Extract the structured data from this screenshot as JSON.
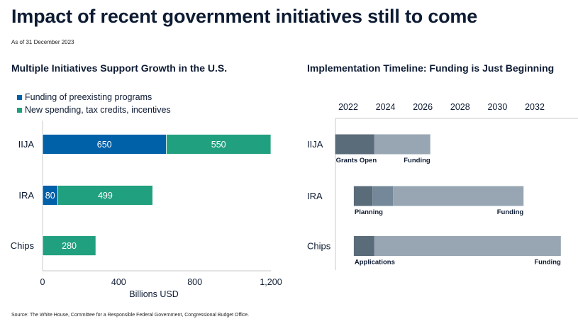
{
  "header": {
    "title": "Impact of recent government initiatives still to come",
    "as_of": "As of 31 December 2023"
  },
  "footer": {
    "source": "Source: The White House, Committee for a Responsible Federal Government, Congressional Budget Office."
  },
  "colors": {
    "blue": "#0060a8",
    "green": "#21a07f",
    "dark_slate": "#5a6b79",
    "mid_slate": "#75889a",
    "light_slate": "#97a6b2",
    "text": "#0d1b33",
    "axis": "#c8c8c8"
  },
  "chart_data": [
    {
      "type": "bar",
      "orientation": "horizontal",
      "stacked": true,
      "title": "Multiple Initiatives Support Growth in the U.S.",
      "categories": [
        "IIJA",
        "IRA",
        "Chips"
      ],
      "series": [
        {
          "name": "Funding of preexisting programs",
          "color_key": "blue",
          "values": [
            650,
            80,
            0
          ]
        },
        {
          "name": "New spending, tax credits, incentives",
          "color_key": "green",
          "values": [
            550,
            499,
            280
          ]
        }
      ],
      "data_labels": [
        [
          "650",
          "80",
          null
        ],
        [
          "550",
          "499",
          "280"
        ]
      ],
      "xlabel": "Billions USD",
      "ylabel": "",
      "xlim": [
        0,
        1200
      ],
      "xticks": [
        0,
        400,
        800,
        1200
      ],
      "xtick_labels": [
        "0",
        "400",
        "800",
        "1,200"
      ],
      "legend_position": "top-left",
      "grid": false
    },
    {
      "type": "bar",
      "subtype": "timeline",
      "orientation": "horizontal",
      "title": "Implementation Timeline: Funding is Just Beginning",
      "categories": [
        "IIJA",
        "IRA",
        "Chips"
      ],
      "xlim": [
        2021.3,
        2034.5
      ],
      "xticks": [
        2022,
        2024,
        2026,
        2028,
        2030,
        2032
      ],
      "xtick_labels": [
        "2022",
        "2024",
        "2026",
        "2028",
        "2030",
        "2032"
      ],
      "xaxis_position": "top",
      "rows": [
        {
          "name": "IIJA",
          "segments": [
            {
              "start": 2021.3,
              "end": 2023.4,
              "color_key": "dark_slate"
            },
            {
              "start": 2023.4,
              "end": 2026.4,
              "color_key": "light_slate"
            }
          ],
          "labels": [
            {
              "text": "Grants Open",
              "anchor": "start",
              "at": 2021.3
            },
            {
              "text": "Funding",
              "anchor": "end",
              "at": 2026.4
            }
          ]
        },
        {
          "name": "IRA",
          "segments": [
            {
              "start": 2022.3,
              "end": 2023.3,
              "color_key": "dark_slate"
            },
            {
              "start": 2023.3,
              "end": 2024.4,
              "color_key": "mid_slate"
            },
            {
              "start": 2024.4,
              "end": 2031.4,
              "color_key": "light_slate"
            }
          ],
          "labels": [
            {
              "text": "Planning",
              "anchor": "start",
              "at": 2022.3
            },
            {
              "text": "Funding",
              "anchor": "end",
              "at": 2031.4
            }
          ]
        },
        {
          "name": "Chips",
          "segments": [
            {
              "start": 2022.3,
              "end": 2023.4,
              "color_key": "dark_slate"
            },
            {
              "start": 2023.4,
              "end": 2033.4,
              "color_key": "light_slate"
            }
          ],
          "labels": [
            {
              "text": "Applications",
              "anchor": "start",
              "at": 2022.3
            },
            {
              "text": "Funding",
              "anchor": "end",
              "at": 2033.4
            }
          ]
        }
      ],
      "grid": false
    }
  ]
}
